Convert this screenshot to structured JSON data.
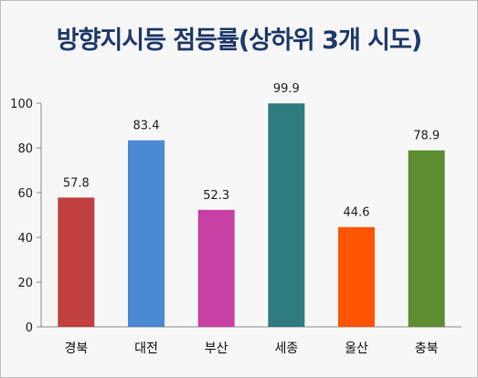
{
  "chart_data": {
    "type": "bar",
    "title": "방향지시등 점등률(상하위 3개 시도)",
    "categories": [
      "경북",
      "대전",
      "부산",
      "세종",
      "울산",
      "충북"
    ],
    "values": [
      57.8,
      83.4,
      52.3,
      99.9,
      44.6,
      78.9
    ],
    "data_labels": [
      "57.8",
      "83.4",
      "52.3",
      "99.9",
      "44.6",
      "78.9"
    ],
    "colors": [
      "#c0403f",
      "#4a89d3",
      "#c840a3",
      "#2d7b7f",
      "#ff5500",
      "#5e8c30"
    ],
    "ylim": [
      0,
      100
    ],
    "yticks": [
      "0",
      "20",
      "40",
      "60",
      "80",
      "100"
    ],
    "xlabel": "",
    "ylabel": "",
    "grid": false,
    "legend": "none"
  }
}
